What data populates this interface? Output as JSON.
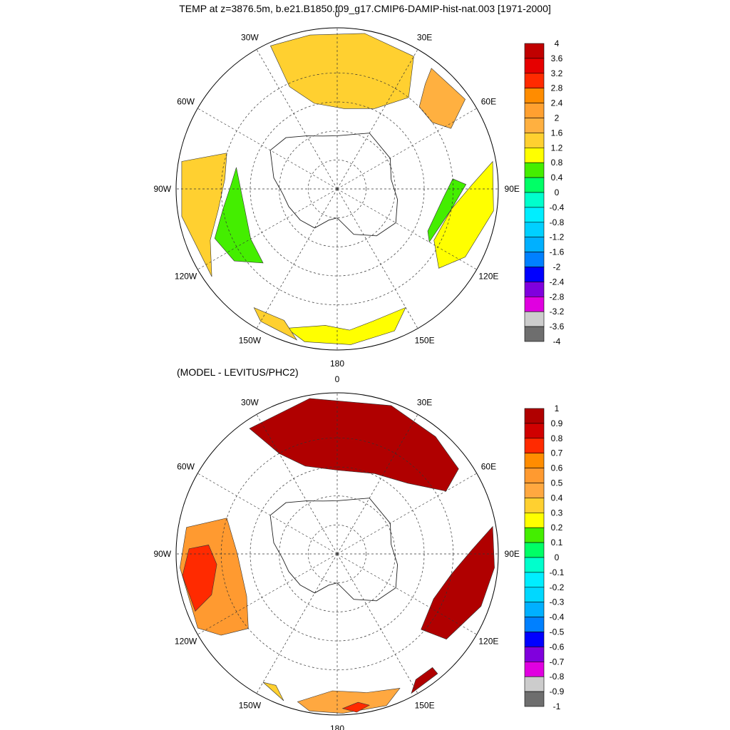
{
  "title": "TEMP at z=3876.5m, b.e21.B1850.f09_g17.CMIP6-DAMIP-hist-nat.003 [1971-2000]",
  "subtitle": "(MODEL - LEVITUS/PHC2)",
  "chart_data": [
    {
      "type": "heatmap",
      "projection": "south polar stereographic",
      "panel": "top",
      "lon_labels": [
        "0",
        "30E",
        "60E",
        "90E",
        "120E",
        "150E",
        "180",
        "150W",
        "120W",
        "90W",
        "60W",
        "30W"
      ],
      "colorbar": {
        "labels": [
          "4",
          "3.6",
          "3.2",
          "2.8",
          "2.4",
          "2",
          "1.6",
          "1.2",
          "0.8",
          "0.4",
          "0",
          "-0.4",
          "-0.8",
          "-1.2",
          "-1.6",
          "-2",
          "-2.4",
          "-2.8",
          "-3.2",
          "-3.6",
          "-4"
        ],
        "colors": [
          "#c00000",
          "#e60000",
          "#ff2a00",
          "#ff8c00",
          "#ffa030",
          "#ffb040",
          "#ffd030",
          "#ffff00",
          "#44ee00",
          "#00ff66",
          "#00ffcc",
          "#00eeff",
          "#00d0ff",
          "#00b0ff",
          "#0080ff",
          "#0000ff",
          "#8000dd",
          "#e000e0",
          "#cccccc",
          "#6e6e6e"
        ]
      },
      "regions": [
        {
          "area": "Atlantic sector 0-60E",
          "value_range": [
            1.2,
            1.6
          ],
          "color": "#ffd030"
        },
        {
          "area": "Indian sector near 60E",
          "value_range": [
            1.6,
            2.4
          ],
          "color": "#ffb040"
        },
        {
          "area": "Pacific 90W-150W outer",
          "value_range": [
            1.2,
            1.6
          ],
          "color": "#ffd030"
        },
        {
          "area": "Pacific 90W-120W inner",
          "value_range": [
            0.4,
            0.8
          ],
          "color": "#44ee00"
        },
        {
          "area": "Indian 90E-120E",
          "value_range": [
            0.4,
            1.2
          ],
          "color": "#ffff00"
        },
        {
          "area": "Ross Sea 150W-150E",
          "value_range": [
            0.8,
            1.2
          ],
          "color": "#ffff00"
        }
      ]
    },
    {
      "type": "heatmap",
      "projection": "south polar stereographic",
      "panel": "bottom",
      "lon_labels": [
        "0",
        "30E",
        "60E",
        "90E",
        "120E",
        "150E",
        "180",
        "150W",
        "120W",
        "90W",
        "60W",
        "30W"
      ],
      "colorbar": {
        "labels": [
          "1",
          "0.9",
          "0.8",
          "0.7",
          "0.6",
          "0.5",
          "0.4",
          "0.3",
          "0.2",
          "0.1",
          "0",
          "-0.1",
          "-0.2",
          "-0.3",
          "-0.4",
          "-0.5",
          "-0.6",
          "-0.7",
          "-0.8",
          "-0.9",
          "-1"
        ],
        "colors": [
          "#b00000",
          "#d00000",
          "#ff2a00",
          "#ff8c00",
          "#ff9a30",
          "#ffa840",
          "#ffd030",
          "#ffff00",
          "#44ee00",
          "#00ff66",
          "#00ffcc",
          "#00eeff",
          "#00d8ff",
          "#00b0ff",
          "#0080ff",
          "#0000ff",
          "#8000dd",
          "#e000e0",
          "#cccccc",
          "#6e6e6e"
        ]
      },
      "regions": [
        {
          "area": "Atlantic/Indian sector 30W-60E",
          "value_range": [
            0.9,
            1.0
          ],
          "color": "#b00000"
        },
        {
          "area": "Indian 90E-120E",
          "value_range": [
            0.9,
            1.0
          ],
          "color": "#b00000"
        },
        {
          "area": "Pacific 90W-120W",
          "value_range": [
            0.5,
            0.9
          ],
          "color": "#ff9a30"
        },
        {
          "area": "Ross Sea 150W-150E",
          "value_range": [
            0.3,
            0.9
          ],
          "color": "#ffa840"
        }
      ]
    }
  ]
}
